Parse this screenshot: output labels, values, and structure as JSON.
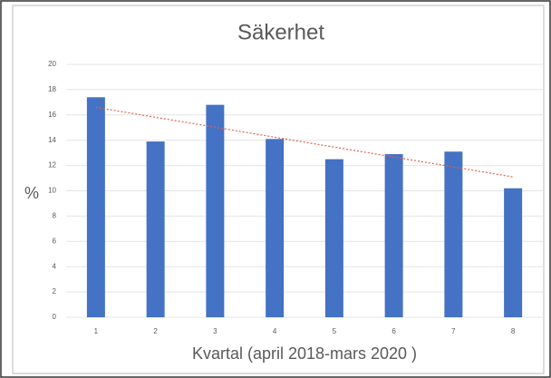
{
  "chart_data": {
    "type": "bar",
    "title": "Säkerhet",
    "x_label": "Kvartal (april 2018-mars 2020 )",
    "y_label": "%",
    "categories": [
      "1",
      "2",
      "3",
      "4",
      "5",
      "6",
      "7",
      "8"
    ],
    "values": [
      17.4,
      13.9,
      16.8,
      14.1,
      12.5,
      12.9,
      13.1,
      10.2
    ],
    "color": "#4472c4",
    "trendline": {
      "color": "#e06050",
      "values": [
        16.6,
        11.1
      ]
    },
    "ylim": [
      0,
      20
    ],
    "yticks": [
      0,
      2,
      4,
      6,
      8,
      10,
      12,
      14,
      16,
      18,
      20
    ],
    "grid": true
  }
}
